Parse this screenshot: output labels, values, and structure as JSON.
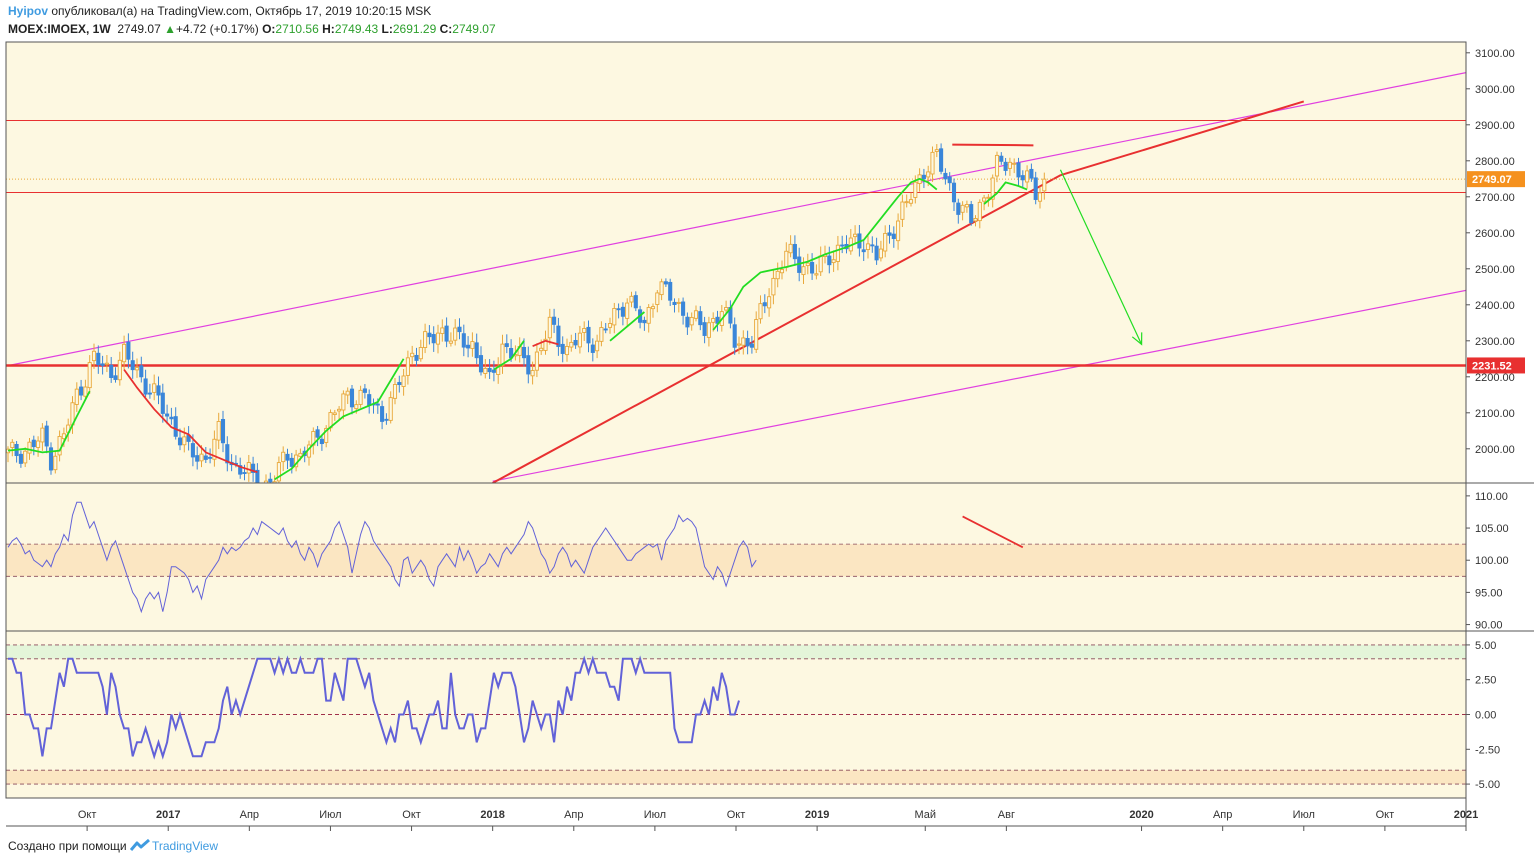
{
  "header": {
    "author": "Hyipov",
    "published_text": "опубликовал(а) на TradingView.com, Октябрь 17, 2019 10:20:15 MSK",
    "symbol": "MOEX:IMOEX, 1W",
    "last": "2749.07",
    "change_arrow": "▲",
    "change": "+4.72 (+0.17%)",
    "o_label": "O:",
    "o_value": "2710.56",
    "h_label": "H:",
    "h_value": "2749.43",
    "l_label": "L:",
    "l_value": "2691.29",
    "c_label": "C:",
    "c_value": "2749.07"
  },
  "footer": {
    "text": "Создано при помощи",
    "brand": "TradingView",
    "icon": "tradingview-logo-icon"
  },
  "colors": {
    "background": "#fdf8e1",
    "bull": "#e8a83b",
    "bear": "#3a86d9",
    "trend": "#e83030",
    "channel": "#e040e0",
    "ma_up": "#22dd22",
    "ma_down": "#e83030",
    "osc": "#6262d8",
    "price_tag": "#f5911e",
    "level_tag": "#e83030"
  },
  "chart_data": [
    {
      "type": "candlestick",
      "panel": "price",
      "y_range": [
        1905,
        3130
      ],
      "y_ticks": [
        "3100.00",
        "3000.00",
        "2900.00",
        "2800.00",
        "2700.00",
        "2600.00",
        "2500.00",
        "2400.00",
        "2300.00",
        "2200.00",
        "2100.00",
        "2000.00"
      ],
      "x_ticks": [
        "Окт",
        "2017",
        "Апр",
        "Июл",
        "Окт",
        "2018",
        "Апр",
        "Июл",
        "Окт",
        "2019",
        "Май",
        "Авг",
        "2020",
        "Апр",
        "Июл",
        "Окт",
        "2021"
      ],
      "bold_x_ticks": [
        "2017",
        "2018",
        "2019",
        "2020",
        "2021"
      ],
      "last_price_label": "2749.07",
      "level_label": "2231.52",
      "close_path": [
        [
          0,
          1985
        ],
        [
          4,
          1995
        ],
        [
          8,
          2030
        ],
        [
          10,
          1975
        ],
        [
          13,
          2035
        ],
        [
          16,
          2150
        ],
        [
          20,
          2250
        ],
        [
          24,
          2210
        ],
        [
          27,
          2260
        ],
        [
          30,
          2215
        ],
        [
          34,
          2150
        ],
        [
          38,
          2075
        ],
        [
          42,
          1990
        ],
        [
          46,
          1975
        ],
        [
          49,
          2040
        ],
        [
          52,
          1960
        ],
        [
          56,
          1930
        ],
        [
          59,
          1890
        ],
        [
          62,
          1920
        ],
        [
          65,
          1985
        ],
        [
          68,
          1975
        ],
        [
          71,
          2020
        ],
        [
          75,
          2080
        ],
        [
          79,
          2150
        ],
        [
          83,
          2140
        ],
        [
          87,
          2095
        ],
        [
          90,
          2150
        ],
        [
          94,
          2270
        ],
        [
          98,
          2300
        ],
        [
          101,
          2330
        ],
        [
          105,
          2300
        ],
        [
          108,
          2290
        ],
        [
          112,
          2180
        ],
        [
          115,
          2290
        ],
        [
          119,
          2250
        ],
        [
          122,
          2230
        ],
        [
          126,
          2340
        ],
        [
          130,
          2275
        ],
        [
          133,
          2310
        ],
        [
          137,
          2300
        ],
        [
          140,
          2350
        ],
        [
          144,
          2420
        ],
        [
          148,
          2340
        ],
        [
          151,
          2460
        ],
        [
          155,
          2405
        ],
        [
          158,
          2370
        ],
        [
          162,
          2330
        ],
        [
          166,
          2390
        ],
        [
          169,
          2300
        ],
        [
          173,
          2300
        ],
        [
          177,
          2445
        ],
        [
          181,
          2540
        ],
        [
          184,
          2520
        ],
        [
          188,
          2490
        ],
        [
          191,
          2540
        ],
        [
          195,
          2565
        ],
        [
          199,
          2580
        ],
        [
          202,
          2530
        ],
        [
          206,
          2620
        ],
        [
          210,
          2700
        ],
        [
          213,
          2780
        ],
        [
          216,
          2810
        ],
        [
          218,
          2750
        ],
        [
          221,
          2680
        ],
        [
          224,
          2630
        ],
        [
          227,
          2700
        ],
        [
          230,
          2780
        ],
        [
          233,
          2800
        ],
        [
          236,
          2760
        ],
        [
          239,
          2710
        ],
        [
          241,
          2749
        ]
      ],
      "ma_segments": [
        {
          "color": "up",
          "points": [
            [
              0,
              1995
            ],
            [
              4,
              2000
            ],
            [
              8,
              1990
            ],
            [
              12,
              1995
            ],
            [
              16,
              2090
            ],
            [
              19,
              2160
            ]
          ]
        },
        {
          "color": "down",
          "points": [
            [
              27,
              2220
            ],
            [
              30,
              2170
            ],
            [
              34,
              2110
            ],
            [
              38,
              2060
            ],
            [
              42,
              2040
            ],
            [
              46,
              1990
            ],
            [
              50,
              1970
            ],
            [
              54,
              1950
            ],
            [
              58,
              1935
            ]
          ]
        },
        {
          "color": "up",
          "points": [
            [
              62,
              1915
            ],
            [
              66,
              1945
            ],
            [
              70,
              2000
            ],
            [
              74,
              2050
            ],
            [
              78,
              2090
            ],
            [
              82,
              2110
            ],
            [
              86,
              2130
            ],
            [
              89,
              2190
            ],
            [
              92,
              2250
            ]
          ]
        },
        {
          "color": "up",
          "points": [
            [
              113,
              2220
            ],
            [
              117,
              2250
            ],
            [
              120,
              2300
            ]
          ]
        },
        {
          "color": "down",
          "points": [
            [
              122,
              2285
            ],
            [
              125,
              2300
            ],
            [
              128,
              2290
            ]
          ]
        },
        {
          "color": "up",
          "points": [
            [
              140,
              2300
            ],
            [
              144,
              2340
            ],
            [
              148,
              2380
            ]
          ]
        },
        {
          "color": "up",
          "points": [
            [
              164,
              2330
            ],
            [
              168,
              2390
            ],
            [
              171,
              2450
            ],
            [
              175,
              2490
            ],
            [
              181,
              2505
            ],
            [
              186,
              2520
            ],
            [
              190,
              2540
            ],
            [
              195,
              2560
            ],
            [
              199,
              2580
            ],
            [
              203,
              2640
            ],
            [
              207,
              2700
            ],
            [
              210,
              2740
            ],
            [
              212,
              2750
            ],
            [
              214,
              2740
            ],
            [
              216,
              2720
            ]
          ]
        },
        {
          "color": "up",
          "points": [
            [
              227,
              2680
            ],
            [
              230,
              2710
            ],
            [
              232,
              2740
            ],
            [
              235,
              2730
            ],
            [
              237,
              2720
            ]
          ]
        }
      ],
      "trend_lines": [
        {
          "name": "rising-support",
          "color": "trend",
          "from": [
            "2018-01",
            1905
          ],
          "to": [
            "2019-10",
            2760
          ]
        },
        {
          "name": "support-extension",
          "color": "trend",
          "from": [
            "2019-10",
            2760
          ],
          "to": [
            "2020-07",
            2965
          ]
        },
        {
          "name": "double-top",
          "color": "trend",
          "from": [
            "2019-06",
            2845
          ],
          "to": [
            "2019-09",
            2843
          ]
        },
        {
          "name": "level-2231",
          "color": "trend",
          "value": 2231.52,
          "thick": true
        },
        {
          "name": "level-2912",
          "color": "trend",
          "value": 2912
        },
        {
          "name": "level-2712",
          "color": "trend",
          "value": 2712
        },
        {
          "name": "last-price",
          "color": "bull",
          "value": 2749.07,
          "dotted": true
        }
      ],
      "channel": [
        {
          "from": [
            "2016-07",
            2230
          ],
          "to": [
            "2021-01",
            3045
          ]
        },
        {
          "from": [
            "2018-01",
            1910
          ],
          "to": [
            "2021-01",
            2440
          ]
        }
      ],
      "arrow": {
        "color": "ma_up",
        "from": [
          "2019-10",
          2775
        ],
        "to": [
          "2020-01",
          2290
        ]
      }
    },
    {
      "type": "line",
      "panel": "oscillator-1",
      "y_range": [
        89,
        112
      ],
      "y_ticks": [
        "110.00",
        "105.00",
        "100.00",
        "95.00",
        "90.00"
      ],
      "band": [
        97.5,
        102.5
      ],
      "zero_line": 102.5,
      "values": [
        102,
        103,
        103.5,
        102.5,
        101,
        101.5,
        100,
        99.5,
        99,
        100,
        99,
        101,
        102,
        104,
        103,
        107,
        109,
        109,
        107,
        105,
        106,
        104,
        102,
        100,
        102,
        103,
        101,
        99,
        97,
        95,
        94,
        92,
        94,
        95,
        94,
        95,
        92,
        95,
        99,
        99,
        98.5,
        98,
        97,
        95,
        96,
        94,
        97,
        98,
        99,
        100,
        102,
        101,
        102,
        101.5,
        102,
        103,
        103.5,
        105,
        104,
        106,
        105.5,
        105,
        104.5,
        104,
        105,
        103,
        102,
        103,
        101,
        100,
        102,
        101,
        99,
        101,
        102,
        103,
        105,
        106,
        104,
        102,
        98,
        101,
        104,
        106,
        105,
        103,
        102,
        101,
        100,
        99,
        97,
        96,
        100,
        100.5,
        98,
        99,
        100,
        99,
        97,
        96,
        99,
        100,
        101,
        100,
        99,
        102,
        100,
        101.5,
        100,
        98,
        99,
        99.5,
        101,
        100,
        99,
        101,
        102,
        101,
        102,
        103,
        104,
        106,
        105,
        103,
        101,
        100,
        98,
        99,
        101,
        102,
        101,
        99,
        100,
        99,
        98,
        100,
        102,
        103,
        104,
        105,
        104,
        103,
        102,
        101,
        100,
        100,
        101,
        101.5,
        102,
        102.5,
        102,
        102.5,
        100,
        103,
        104,
        105,
        107,
        106,
        106.5,
        106,
        105,
        102,
        99,
        98,
        97,
        99,
        98,
        96,
        98,
        100,
        102,
        103,
        102,
        99,
        100
      ],
      "trend_line": {
        "color": "trend",
        "from": [
          222,
          106.8
        ],
        "to": [
          236,
          102
        ]
      }
    },
    {
      "type": "line",
      "panel": "oscillator-2",
      "y_range": [
        -6,
        6
      ],
      "y_ticks": [
        "5.00",
        "2.50",
        "0.00",
        "-2.50",
        "-5.00"
      ],
      "band_top": [
        4,
        5
      ],
      "band_bottom": [
        -5,
        -4
      ],
      "zero_line": 0,
      "values": [
        4,
        4,
        3,
        3,
        0,
        0,
        -1,
        -1,
        -3,
        -1,
        -1,
        1,
        3,
        2,
        4,
        4,
        3,
        3,
        3,
        3,
        3,
        3,
        2,
        0,
        3,
        2,
        0,
        -1,
        -1,
        -3,
        -2,
        -2,
        -1,
        -2,
        -3,
        -2,
        -3,
        -2,
        0,
        -1,
        0,
        -1,
        -2,
        -3,
        -3,
        -3,
        -2,
        -2,
        -2,
        -1,
        1,
        2,
        0,
        1,
        0,
        1,
        2,
        3,
        4,
        4,
        4,
        4,
        3,
        4,
        3,
        4,
        3,
        3,
        4,
        3,
        3,
        3,
        4,
        4,
        1,
        1,
        3,
        2,
        1,
        4,
        4,
        4,
        3,
        2,
        3,
        1,
        0,
        -1,
        -2,
        -1,
        -2,
        0,
        0,
        1,
        -1,
        -1,
        -2,
        -1,
        0,
        0,
        1,
        -1,
        -1,
        3,
        0,
        -1,
        -1,
        0,
        0,
        -2,
        -1,
        -1,
        1,
        3,
        2,
        3,
        3,
        3,
        2,
        0,
        -2,
        -1,
        1,
        0,
        -1,
        0,
        0,
        -2,
        1,
        0,
        2,
        1,
        3,
        3,
        4,
        3,
        4,
        3,
        3,
        3,
        2,
        2,
        1,
        4,
        4,
        4,
        3,
        4,
        3,
        3,
        3,
        3,
        3,
        3,
        3,
        -1,
        -2,
        -2,
        -2,
        -2,
        0,
        0,
        1,
        0,
        2,
        1,
        3,
        2,
        0,
        0,
        1
      ]
    }
  ]
}
